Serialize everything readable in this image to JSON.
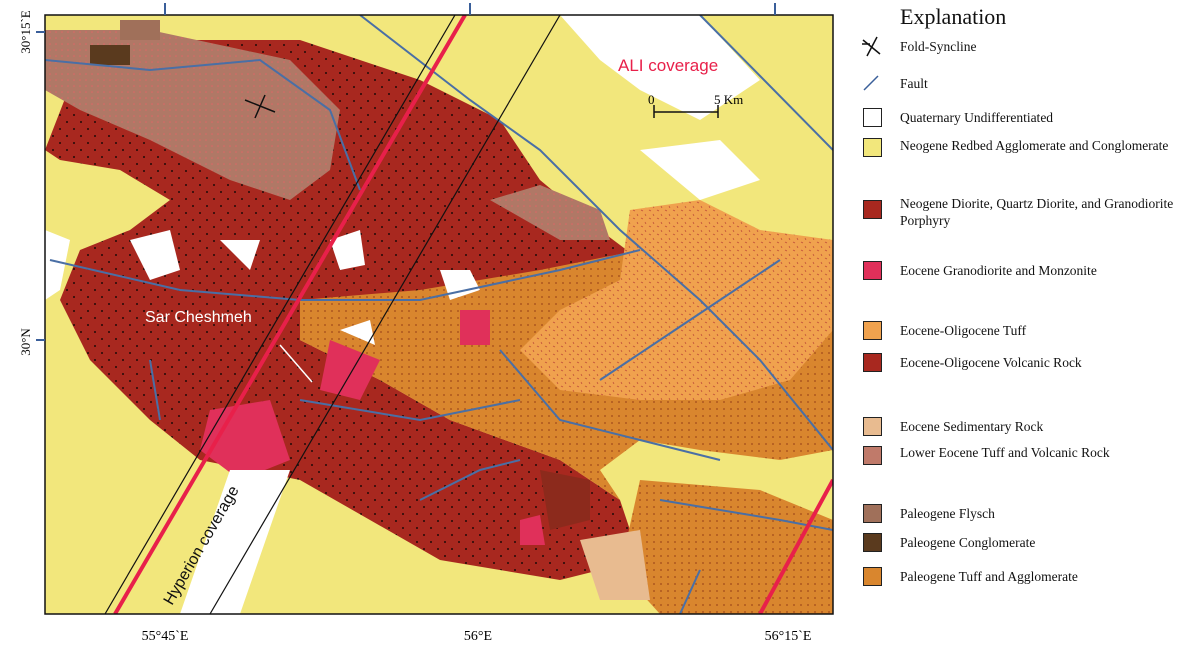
{
  "map": {
    "lat_labels": [
      "30°15`E",
      "30°N"
    ],
    "lon_labels": [
      "55°45`E",
      "56°E",
      "56°15`E"
    ],
    "annotations": {
      "ali": "ALI coverage",
      "town": "Sar Cheshmeh",
      "hyperion": "Hyperion coverage"
    },
    "scale_bar": {
      "start": "0",
      "end": "5 Km"
    }
  },
  "legend": {
    "title": "Explanation",
    "items": [
      "Fold-Syncline",
      "Fault",
      "Quaternary Undifferentiated",
      "Neogene Redbed Agglomerate and Conglomerate",
      "Neogene Diorite, Quartz Diorite, and Granodiorite Porphyry",
      "Eocene Granodiorite and Monzonite",
      "Eocene-Oligocene Tuff",
      "Eocene-Oligocene Volcanic Rock",
      "Eocene Sedimentary Rock",
      "Lower Eocene Tuff and Volcanic Rock",
      "Paleogene Flysch",
      "Paleogene Conglomerate",
      "Paleogene Tuff and Agglomerate"
    ]
  }
}
